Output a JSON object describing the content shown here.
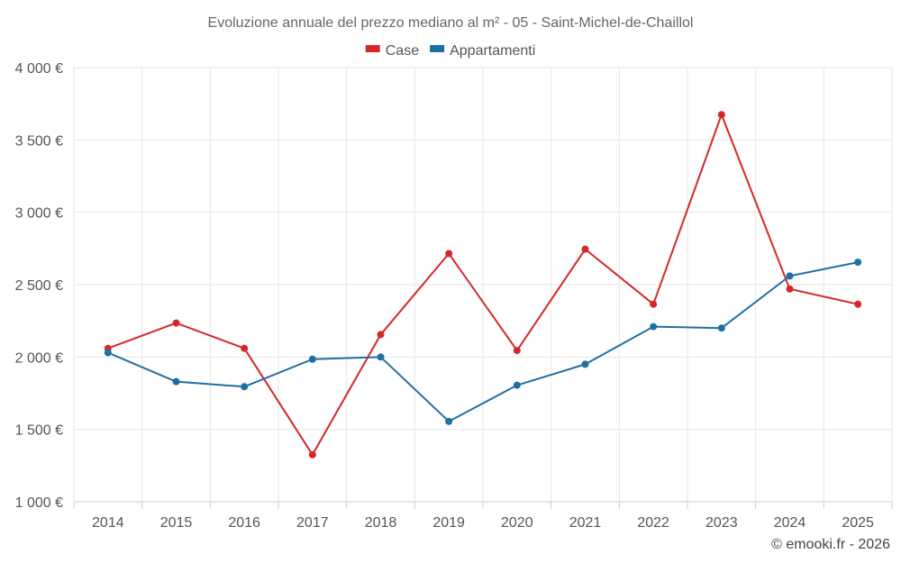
{
  "chart_data": {
    "type": "line",
    "title": "Evoluzione annuale del prezzo mediano al m² - 05 - Saint-Michel-de-Chaillol",
    "categories": [
      "2014",
      "2015",
      "2016",
      "2017",
      "2018",
      "2019",
      "2020",
      "2021",
      "2022",
      "2023",
      "2024",
      "2025"
    ],
    "series": [
      {
        "name": "Case",
        "color": "#d62728",
        "values": [
          2060,
          2235,
          2060,
          1325,
          2155,
          2715,
          2045,
          2745,
          2365,
          3675,
          2470,
          2365
        ]
      },
      {
        "name": "Appartamenti",
        "color": "#1f6fa3",
        "values": [
          2030,
          1830,
          1795,
          1985,
          2000,
          1555,
          1805,
          1950,
          2210,
          2200,
          2560,
          2655
        ]
      }
    ],
    "ylim": [
      1000,
      4000
    ],
    "yticks": [
      1000,
      1500,
      2000,
      2500,
      3000,
      3500,
      4000
    ],
    "ytick_labels": [
      "1 000 €",
      "1 500 €",
      "2 000 €",
      "2 500 €",
      "3 000 €",
      "3 500 €",
      "4 000 €"
    ],
    "xlabel": "",
    "ylabel": "",
    "grid": true,
    "legend_position": "top-center"
  },
  "credit": "© emooki.fr - 2026"
}
